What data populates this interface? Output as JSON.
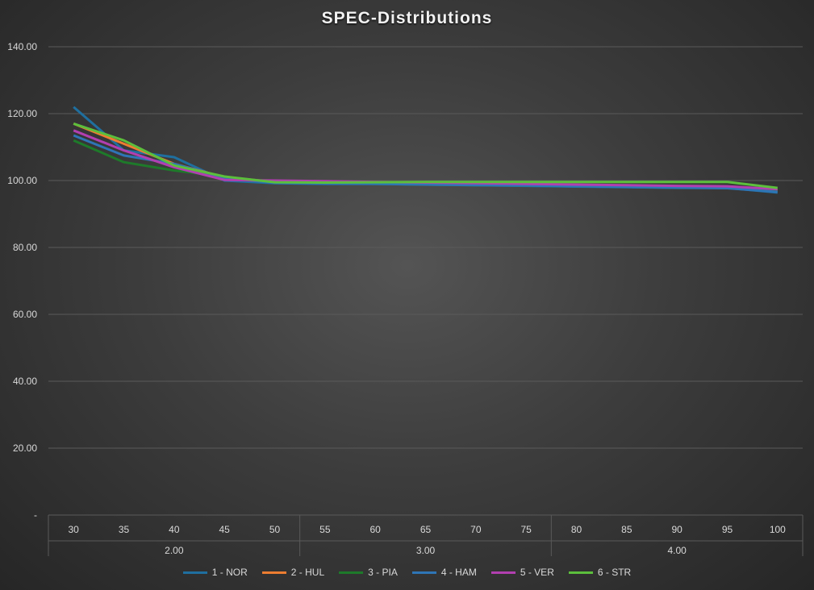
{
  "chart_data": {
    "type": "line",
    "title": "SPEC-Distributions",
    "xlabel": "",
    "ylabel": "",
    "ylim": [
      0,
      140
    ],
    "y_ticks": [
      "-",
      "20.00",
      "40.00",
      "60.00",
      "80.00",
      "100.00",
      "120.00",
      "140.00"
    ],
    "categories": [
      "30",
      "35",
      "40",
      "45",
      "50",
      "55",
      "60",
      "65",
      "70",
      "75",
      "80",
      "85",
      "90",
      "95",
      "100"
    ],
    "groups": [
      {
        "label": "2.00",
        "count": 5
      },
      {
        "label": "3.00",
        "count": 5
      },
      {
        "label": "4.00",
        "count": 5
      }
    ],
    "legend_position": "bottom",
    "grid": true,
    "series": [
      {
        "name": "1 - NOR",
        "color": "#1f6f9f",
        "values": [
          122.0,
          109.0,
          107.0,
          100.0,
          99.2,
          99.0,
          99.0,
          98.8,
          98.6,
          98.4,
          98.2,
          98.0,
          97.8,
          97.8,
          96.4
        ]
      },
      {
        "name": "2 - HUL",
        "color": "#ed7d31",
        "values": [
          117.0,
          111.0,
          105.0,
          101.0,
          99.6,
          99.4,
          99.2,
          99.0,
          98.9,
          98.8,
          98.6,
          98.4,
          98.2,
          98.0,
          97.0
        ]
      },
      {
        "name": "3 - PIA",
        "color": "#1e7a2a",
        "values": [
          112.0,
          105.5,
          103.0,
          101.2,
          99.4,
          99.2,
          99.0,
          98.8,
          98.6,
          98.5,
          98.3,
          98.1,
          97.9,
          97.8,
          96.8
        ]
      },
      {
        "name": "4 - HAM",
        "color": "#2e75b6",
        "values": [
          113.5,
          107.5,
          105.0,
          100.8,
          99.3,
          99.1,
          99.0,
          98.8,
          98.6,
          98.5,
          98.3,
          98.1,
          97.9,
          97.7,
          96.6
        ]
      },
      {
        "name": "5 - VER",
        "color": "#b23fb0",
        "values": [
          115.0,
          109.0,
          104.0,
          100.2,
          100.0,
          99.8,
          99.6,
          99.4,
          99.2,
          99.0,
          98.8,
          98.6,
          98.4,
          98.3,
          97.4
        ]
      },
      {
        "name": "6 - STR",
        "color": "#5cbf3c",
        "values": [
          117.0,
          112.0,
          104.5,
          101.2,
          99.5,
          99.4,
          99.5,
          99.6,
          99.6,
          99.6,
          99.6,
          99.6,
          99.6,
          99.6,
          97.8
        ]
      }
    ]
  }
}
